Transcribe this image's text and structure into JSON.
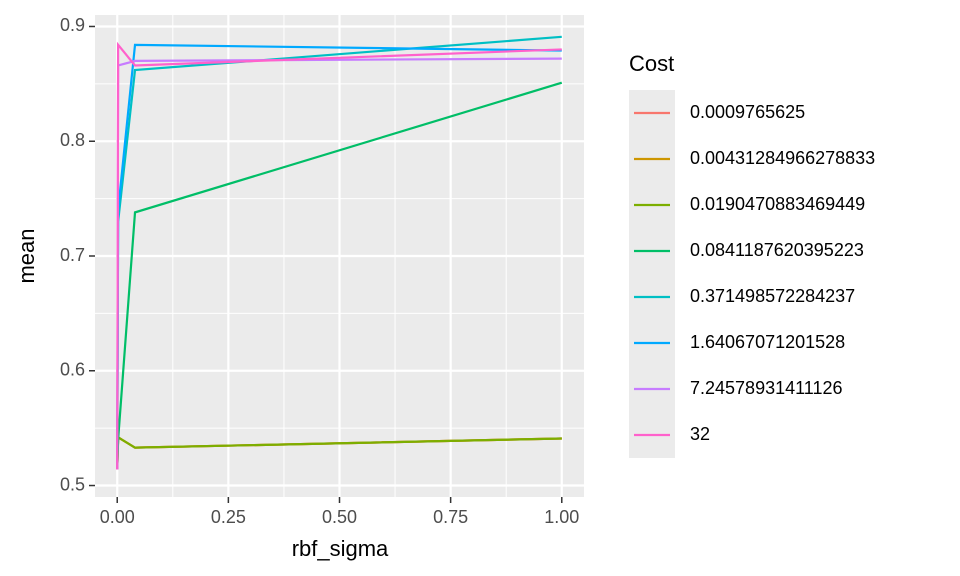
{
  "chart_data": {
    "type": "line",
    "x_label": "rbf_sigma",
    "y_label": "mean",
    "x": [
      0,
      0.002,
      0.04,
      1
    ],
    "xlim": [
      -0.05,
      1.05
    ],
    "ylim": [
      0.49,
      0.91
    ],
    "xticks": [
      {
        "value": 0,
        "label": "0.00"
      },
      {
        "value": 0.25,
        "label": "0.25"
      },
      {
        "value": 0.5,
        "label": "0.50"
      },
      {
        "value": 0.75,
        "label": "0.75"
      },
      {
        "value": 1,
        "label": "1.00"
      }
    ],
    "yticks": [
      0.5,
      0.6,
      0.7,
      0.8,
      0.9
    ],
    "grid": true,
    "legend_title": "Cost",
    "series": [
      {
        "name": "0.0009765625",
        "color": "#f8766d",
        "values": [
          0.514,
          0.542,
          0.533,
          0.541
        ]
      },
      {
        "name": "0.00431284966278833",
        "color": "#cd9600",
        "values": [
          0.514,
          0.542,
          0.533,
          0.541
        ]
      },
      {
        "name": "0.0190470883469449",
        "color": "#7cae00",
        "values": [
          0.514,
          0.542,
          0.533,
          0.541
        ]
      },
      {
        "name": "0.0841187620395223",
        "color": "#00be67",
        "values": [
          0.514,
          0.54,
          0.738,
          0.851
        ]
      },
      {
        "name": "0.371498572284237",
        "color": "#00bfc4",
        "values": [
          0.514,
          0.73,
          0.862,
          0.891
        ]
      },
      {
        "name": "1.64067071201528",
        "color": "#00a9ff",
        "values": [
          0.514,
          0.74,
          0.884,
          0.879
        ]
      },
      {
        "name": "7.24578931411126",
        "color": "#c77cff",
        "values": [
          0.514,
          0.866,
          0.87,
          0.872
        ]
      },
      {
        "name": "32",
        "color": "#ff61cc",
        "values": [
          0.514,
          0.884,
          0.866,
          0.88
        ]
      }
    ]
  }
}
